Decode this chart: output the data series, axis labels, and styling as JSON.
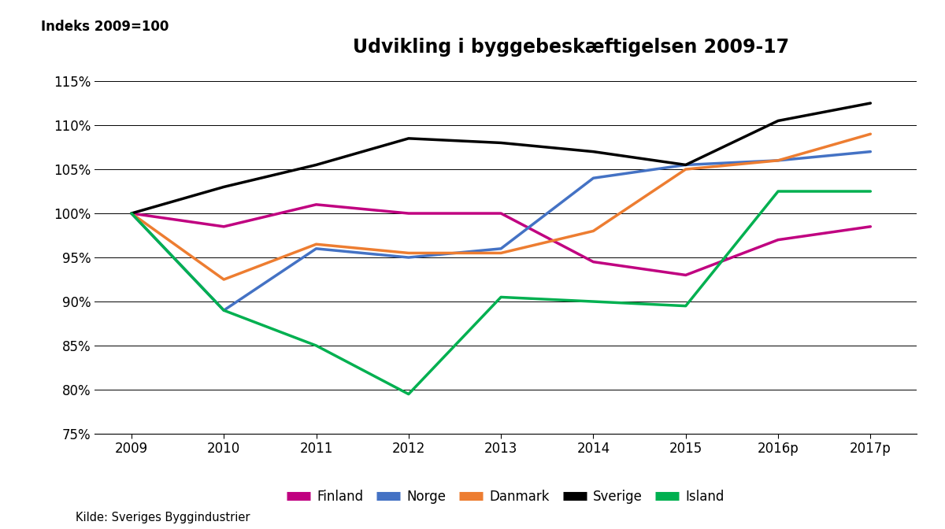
{
  "title": "Udvikling i byggebeskæftigelsen 2009-17",
  "ylabel": "Indeks 2009=100",
  "source": "Kilde: Sveriges Byggindustrier",
  "x_labels": [
    "2009",
    "2010",
    "2011",
    "2012",
    "2013",
    "2014",
    "2015",
    "2016p",
    "2017p"
  ],
  "x_values": [
    2009,
    2010,
    2011,
    2012,
    2013,
    2014,
    2015,
    2016,
    2017
  ],
  "series": [
    {
      "name": "Finland",
      "color": "#C00080",
      "values": [
        100,
        98.5,
        101,
        100,
        100,
        94.5,
        93,
        97,
        98.5
      ]
    },
    {
      "name": "Norge",
      "color": "#4472C4",
      "values": [
        100,
        89,
        96,
        95,
        96,
        104,
        105.5,
        106,
        107
      ]
    },
    {
      "name": "Danmark",
      "color": "#ED7D31",
      "values": [
        100,
        92.5,
        96.5,
        95.5,
        95.5,
        98,
        105,
        106,
        109
      ]
    },
    {
      "name": "Sverige",
      "color": "#000000",
      "values": [
        100,
        103,
        105.5,
        108.5,
        108,
        107,
        105.5,
        110.5,
        112.5
      ]
    },
    {
      "name": "Island",
      "color": "#00B050",
      "values": [
        100,
        89,
        85,
        79.5,
        90.5,
        90,
        89.5,
        102.5,
        102.5
      ]
    }
  ],
  "ylim_min": 75,
  "ylim_max": 117,
  "yticks": [
    75,
    80,
    85,
    90,
    95,
    100,
    105,
    110,
    115
  ],
  "background_color": "#FFFFFF",
  "grid_color": "#000000",
  "title_fontsize": 17,
  "label_fontsize": 12,
  "legend_fontsize": 12,
  "line_width": 2.5
}
